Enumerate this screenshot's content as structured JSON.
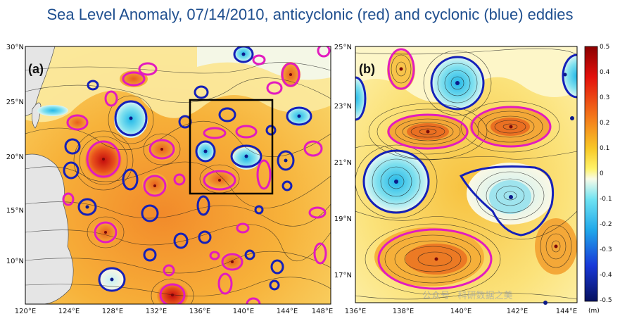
{
  "title": "Sea Level Anomaly, 07/14/2010, anticyclonic (red) and cyclonic (blue) eddies",
  "panel_a": {
    "label": "(a)",
    "x_ticks": [
      "120°E",
      "124°E",
      "128°E",
      "132°E",
      "136°E",
      "140°E",
      "144°E",
      "148°E"
    ],
    "y_ticks": [
      "30°N",
      "25°N",
      "20°N",
      "15°N",
      "10°N"
    ]
  },
  "panel_b": {
    "label": "(b)",
    "x_ticks": [
      "136°E",
      "138°E",
      "140°E",
      "142°E",
      "144°E"
    ],
    "y_ticks": [
      "25°N",
      "23°N",
      "21°N",
      "19°N",
      "17°N"
    ]
  },
  "colorbar": {
    "ticks": [
      "0.5",
      "0.4",
      "0.3",
      "0.2",
      "0.1",
      "0",
      "-0.1",
      "-0.2",
      "-0.3",
      "-0.4",
      "-0.5"
    ],
    "unit": "(m)",
    "range": [
      -0.5,
      0.5
    ]
  },
  "watermark": "公众号 · 科研数据之美",
  "colors": {
    "title": "#1f4f8f",
    "anticyclonic": "#e21bbf",
    "cyclonic": "#1520b8",
    "box": "#000000"
  }
}
